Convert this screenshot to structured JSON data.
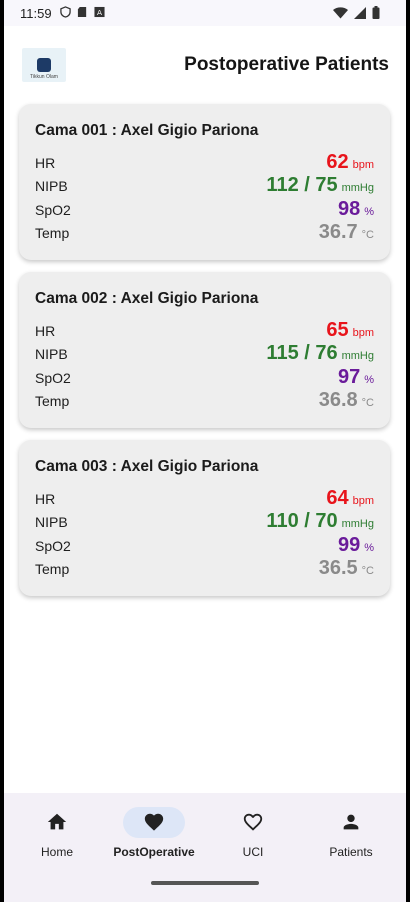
{
  "status_bar": {
    "time": "11:59",
    "left_icons": [
      "shield-icon",
      "sd-card-icon",
      "text-box-icon"
    ],
    "right_icons": [
      "wifi-icon",
      "signal-icon",
      "battery-icon"
    ]
  },
  "app_bar": {
    "title": "Postoperative Patients",
    "logo_text": "Tikkun Olam"
  },
  "patients": [
    {
      "title": "Cama 001 : Axel Gigio Pariona",
      "vitals": {
        "hr": {
          "label": "HR",
          "value": "62",
          "unit": "bpm"
        },
        "nipb": {
          "label": "NIPB",
          "value": "112 / 75",
          "unit": "mmHg"
        },
        "spo2": {
          "label": "SpO2",
          "value": "98",
          "unit": "%"
        },
        "temp": {
          "label": "Temp",
          "value": "36.7",
          "unit": "°C"
        }
      }
    },
    {
      "title": "Cama 002 : Axel Gigio Pariona",
      "vitals": {
        "hr": {
          "label": "HR",
          "value": "65",
          "unit": "bpm"
        },
        "nipb": {
          "label": "NIPB",
          "value": "115 / 76",
          "unit": "mmHg"
        },
        "spo2": {
          "label": "SpO2",
          "value": "97",
          "unit": "%"
        },
        "temp": {
          "label": "Temp",
          "value": "36.8",
          "unit": "°C"
        }
      }
    },
    {
      "title": "Cama 003 : Axel Gigio Pariona",
      "vitals": {
        "hr": {
          "label": "HR",
          "value": "64",
          "unit": "bpm"
        },
        "nipb": {
          "label": "NIPB",
          "value": "110 / 70",
          "unit": "mmHg"
        },
        "spo2": {
          "label": "SpO2",
          "value": "99",
          "unit": "%"
        },
        "temp": {
          "label": "Temp",
          "value": "36.5",
          "unit": "°C"
        }
      }
    }
  ],
  "colors": {
    "hr": "#e8141b",
    "nipb": "#2e7d32",
    "spo2": "#6a1b9a",
    "temp": "#8a8a8a",
    "active_nav": "#dde6f7"
  },
  "bottom_nav": {
    "items": [
      {
        "label": "Home",
        "icon": "home-icon",
        "active": false
      },
      {
        "label": "PostOperative",
        "icon": "heart-filled-icon",
        "active": true
      },
      {
        "label": "UCI",
        "icon": "heart-outline-icon",
        "active": false
      },
      {
        "label": "Patients",
        "icon": "person-icon",
        "active": false
      }
    ]
  }
}
